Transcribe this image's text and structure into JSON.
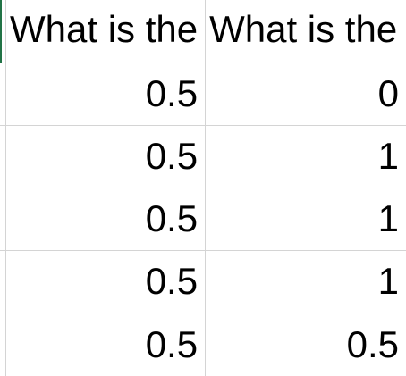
{
  "sheet": {
    "headers": [
      "What is the",
      "What is the"
    ],
    "rows": [
      [
        "0.5",
        "0"
      ],
      [
        "0.5",
        "1"
      ],
      [
        "0.5",
        "1"
      ],
      [
        "0.5",
        "1"
      ],
      [
        "0.5",
        "0.5"
      ]
    ]
  },
  "colors": {
    "gridline": "#d4d4d4",
    "accent": "#217346",
    "text": "#000000"
  }
}
